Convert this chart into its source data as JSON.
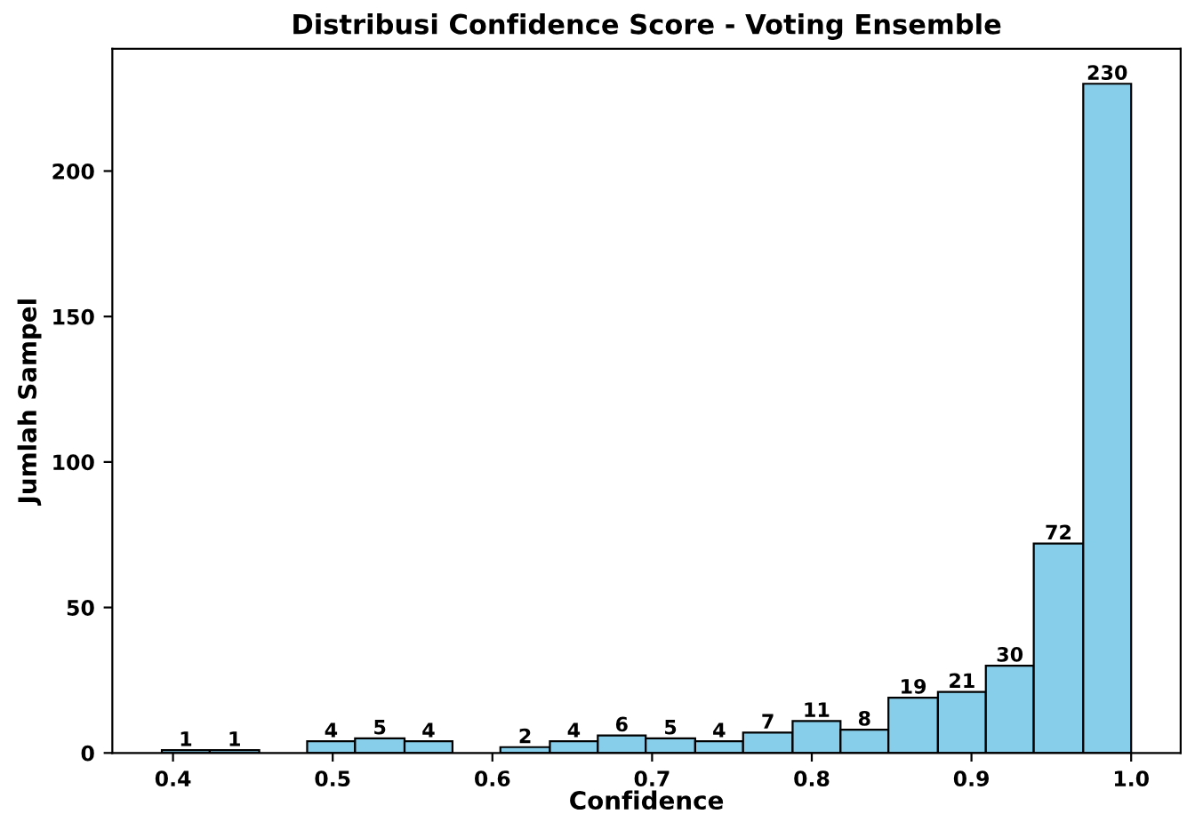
{
  "chart_data": {
    "type": "histogram",
    "title": "Distribusi Confidence Score - Voting Ensemble",
    "xlabel": "Confidence",
    "ylabel": "Jumlah Sampel",
    "bins": [
      0.393,
      0.423,
      0.454,
      0.484,
      0.514,
      0.545,
      0.575,
      0.605,
      0.636,
      0.666,
      0.696,
      0.727,
      0.757,
      0.788,
      0.818,
      0.848,
      0.879,
      0.909,
      0.939,
      0.97,
      1.0
    ],
    "values": [
      1,
      1,
      0,
      4,
      5,
      4,
      0,
      2,
      4,
      6,
      5,
      4,
      7,
      11,
      8,
      19,
      21,
      30,
      72,
      230
    ],
    "value_labels": [
      "1",
      "1",
      null,
      "4",
      "5",
      "4",
      null,
      "2",
      "4",
      "6",
      "5",
      "4",
      "7",
      "11",
      "8",
      "19",
      "21",
      "30",
      "72",
      "230"
    ],
    "color": "#87ceeb",
    "xlim": [
      0.362,
      1.031
    ],
    "xticks": [
      0.4,
      0.5,
      0.6,
      0.7,
      0.8,
      0.9,
      {
        "value": 1.0,
        "label": "1.0"
      }
    ],
    "ylim": [
      0,
      242
    ],
    "yticks": [
      0,
      50,
      100,
      150,
      200
    ],
    "grid": false
  }
}
